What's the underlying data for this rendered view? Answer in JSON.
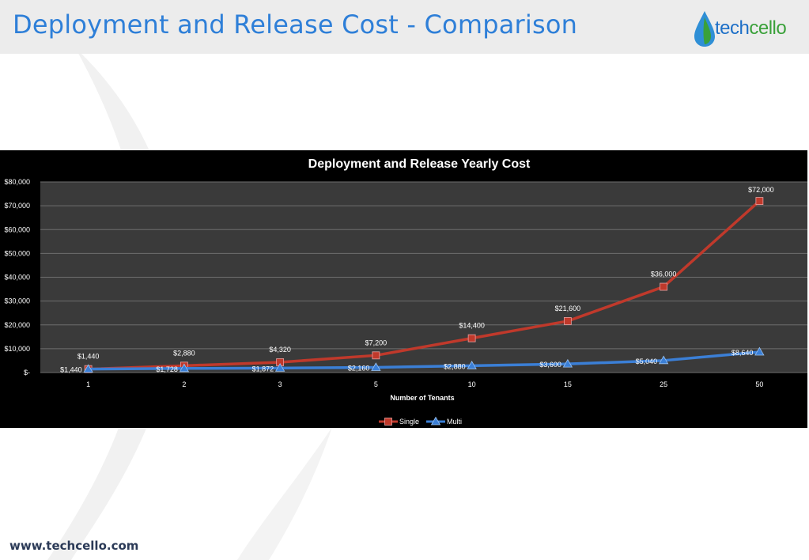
{
  "slide": {
    "title": "Deployment and Release Cost - Comparison",
    "footer_url": "www.techcello.com"
  },
  "logo": {
    "text_part1": "tech",
    "text_part2": "cello",
    "color_part1": "#1d6fc7",
    "color_part2": "#3aa13a"
  },
  "colors": {
    "title": "#2e7fd8",
    "single_series": "#c0392b",
    "multi_series": "#3b7fd6",
    "plot_background": "#3a3a3a"
  },
  "chart_data": {
    "type": "line",
    "title": "Deployment and Release Yearly Cost",
    "xlabel": "Number of Tenants",
    "ylabel": "",
    "categories": [
      "1",
      "2",
      "3",
      "5",
      "10",
      "15",
      "25",
      "50"
    ],
    "ylim": [
      0,
      80000
    ],
    "yticks": [
      0,
      10000,
      20000,
      30000,
      40000,
      50000,
      60000,
      70000,
      80000
    ],
    "ytick_labels": [
      "$-",
      "$10,000",
      "$20,000",
      "$30,000",
      "$40,000",
      "$50,000",
      "$60,000",
      "$70,000",
      "$80,000"
    ],
    "grid": true,
    "legend_position": "bottom",
    "series": [
      {
        "name": "Single",
        "marker": "square",
        "color": "#c0392b",
        "values": [
          1440,
          2880,
          4320,
          7200,
          14400,
          21600,
          36000,
          72000
        ],
        "labels": [
          "$1,440",
          "$2,880",
          "$4,320",
          "$7,200",
          "$14,400",
          "$21,600",
          "$36,000",
          "$72,000"
        ]
      },
      {
        "name": "Multi",
        "marker": "triangle",
        "color": "#3b7fd6",
        "values": [
          1440,
          1728,
          1872,
          2160,
          2880,
          3600,
          5040,
          8640
        ],
        "labels": [
          "$1,440",
          "$1,728",
          "$1,872",
          "$2,160",
          "$2,880",
          "$3,600",
          "$5,040",
          "$8,640"
        ]
      }
    ]
  }
}
